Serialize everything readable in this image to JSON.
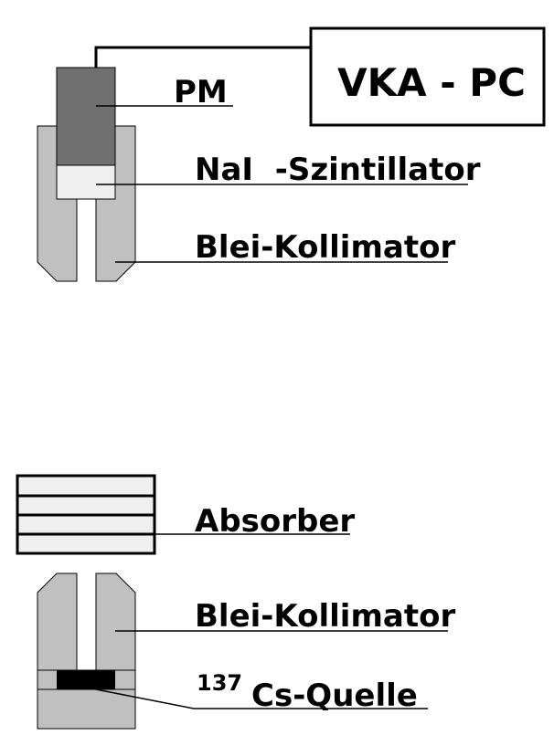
{
  "labels": {
    "vka_pc": "VKA - PC",
    "pm": "PM",
    "nai": "NaI  -Szintillator",
    "blei_top": "Blei-Kollimator",
    "absorber": "Absorber",
    "blei_bottom": "Blei-Kollimator",
    "cs_mass": "137",
    "cs_name": "Cs-Quelle"
  },
  "colors": {
    "lead": "#c0c0c0",
    "pm_tube": "#707070",
    "crystal": "#efefef",
    "absorber_plate": "#efefef",
    "source": "#000000"
  }
}
